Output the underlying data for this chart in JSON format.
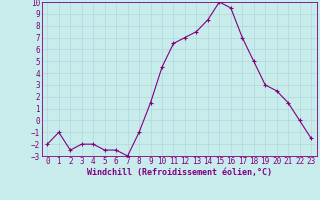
{
  "x": [
    0,
    1,
    2,
    3,
    4,
    5,
    6,
    7,
    8,
    9,
    10,
    11,
    12,
    13,
    14,
    15,
    16,
    17,
    18,
    19,
    20,
    21,
    22,
    23
  ],
  "y": [
    -2.0,
    -1.0,
    -2.5,
    -2.0,
    -2.0,
    -2.5,
    -2.5,
    -3.0,
    -1.0,
    1.5,
    4.5,
    6.5,
    7.0,
    7.5,
    8.5,
    10.0,
    9.5,
    7.0,
    5.0,
    3.0,
    2.5,
    1.5,
    0.0,
    -1.5
  ],
  "xlabel": "Windchill (Refroidissement éolien,°C)",
  "xlim": [
    -0.5,
    23.5
  ],
  "ylim": [
    -3,
    10
  ],
  "yticks": [
    -3,
    -2,
    -1,
    0,
    1,
    2,
    3,
    4,
    5,
    6,
    7,
    8,
    9,
    10
  ],
  "xticks": [
    0,
    1,
    2,
    3,
    4,
    5,
    6,
    7,
    8,
    9,
    10,
    11,
    12,
    13,
    14,
    15,
    16,
    17,
    18,
    19,
    20,
    21,
    22,
    23
  ],
  "line_color": "#800080",
  "bg_color": "#c8ecec",
  "grid_color": "#b0d8d8",
  "tick_color": "#800080",
  "xlabel_color": "#800080",
  "font_size": 5.5,
  "xlabel_fontsize": 6.0
}
